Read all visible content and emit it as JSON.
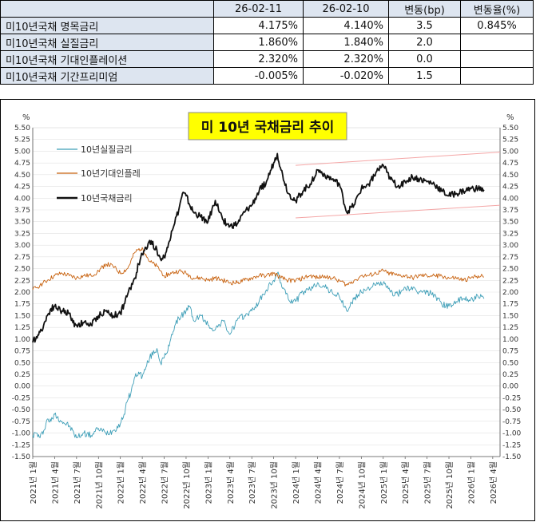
{
  "table": {
    "headers": [
      "",
      "26-02-11",
      "26-02-10",
      "변동(bp)",
      "변동율(%)"
    ],
    "rows": [
      {
        "label": "미10년국채 명목금리",
        "v1": "4.175%",
        "v2": "4.140%",
        "bp": "3.5",
        "pct": "0.845%"
      },
      {
        "label": "미10년국채 실질금리",
        "v1": "1.860%",
        "v2": "1.840%",
        "bp": "2.0",
        "pct": ""
      },
      {
        "label": "미10년국채 기대인플레이션",
        "v1": "2.320%",
        "v2": "2.320%",
        "bp": "0.0",
        "pct": ""
      },
      {
        "label": "미10년국채 기간프리미엄",
        "v1": "-0.005%",
        "v2": "-0.020%",
        "bp": "1.5",
        "pct": ""
      }
    ]
  },
  "colors": {
    "nominal": "#111111",
    "real": "#3f9fb8",
    "inflation": "#c8620f",
    "title_bg": "#ffff00",
    "channel": "#f4a6a6",
    "axis_text": "#333333"
  },
  "chart_data": {
    "type": "line",
    "title": "미 10년 국채금리 추이",
    "ylabel_left": "%",
    "ylabel_right": "%",
    "ylim": [
      -1.5,
      5.5
    ],
    "ytick_step": 0.25,
    "yticks": [
      "5.50",
      "5.25",
      "5.00",
      "4.75",
      "4.50",
      "4.25",
      "4.00",
      "3.75",
      "3.50",
      "3.25",
      "3.00",
      "2.75",
      "2.50",
      "2.25",
      "2.00",
      "1.75",
      "1.50",
      "1.25",
      "1.00",
      "0.75",
      "0.50",
      "0.25",
      "0.00",
      "-0.25",
      "-0.50",
      "-0.75",
      "-1.00",
      "-1.25",
      "-1.50"
    ],
    "x_unit": "months since 2021-01",
    "xlim": [
      0,
      64
    ],
    "xtick_labels": [
      "2021년 1월",
      "2021년 4월",
      "2021년 7월",
      "2021년 10월",
      "2022년 1월",
      "2022년 4월",
      "2022년 7월",
      "2022년 10월",
      "2023년 1월",
      "2023년 4월",
      "2023년 7월",
      "2023년 10월",
      "2024년 1월",
      "2024년 4월",
      "2024년 7월",
      "2024년 10월",
      "2025년 1월",
      "2025년 4월",
      "2025년 7월",
      "2025년 10월",
      "2026년 1월",
      "2026년 4월"
    ],
    "x_months": [
      0,
      3,
      6,
      9,
      12,
      15,
      18,
      21,
      24,
      27,
      30,
      33,
      36,
      39,
      42,
      45,
      48,
      51,
      54,
      57,
      60,
      63
    ],
    "series": [
      {
        "name": "10년실질금리",
        "key": "real",
        "points": [
          [
            0,
            -1.05
          ],
          [
            0.5,
            -1.0
          ],
          [
            1,
            -1.1
          ],
          [
            1.5,
            -0.95
          ],
          [
            2,
            -0.7
          ],
          [
            2.5,
            -0.75
          ],
          [
            3,
            -0.6
          ],
          [
            4,
            -0.75
          ],
          [
            5,
            -0.85
          ],
          [
            6,
            -1.1
          ],
          [
            7,
            -1.0
          ],
          [
            8,
            -1.05
          ],
          [
            9,
            -0.9
          ],
          [
            10,
            -1.0
          ],
          [
            11,
            -0.95
          ],
          [
            12,
            -0.8
          ],
          [
            12.5,
            -0.6
          ],
          [
            13,
            -0.3
          ],
          [
            13.5,
            -0.1
          ],
          [
            14,
            0.2
          ],
          [
            14.5,
            0.3
          ],
          [
            15,
            0.2
          ],
          [
            15.5,
            0.4
          ],
          [
            16,
            0.6
          ],
          [
            17,
            0.8
          ],
          [
            17.5,
            0.5
          ],
          [
            18,
            0.6
          ],
          [
            18.5,
            0.75
          ],
          [
            19,
            1.1
          ],
          [
            20,
            1.45
          ],
          [
            21,
            1.6
          ],
          [
            21.5,
            1.7
          ],
          [
            22,
            1.4
          ],
          [
            23,
            1.5
          ],
          [
            24,
            1.3
          ],
          [
            25,
            1.2
          ],
          [
            26,
            1.4
          ],
          [
            27,
            1.1
          ],
          [
            28,
            1.4
          ],
          [
            29,
            1.5
          ],
          [
            30,
            1.6
          ],
          [
            31,
            1.8
          ],
          [
            32,
            2.05
          ],
          [
            33,
            2.25
          ],
          [
            33.5,
            2.4
          ],
          [
            34,
            2.2
          ],
          [
            35,
            1.85
          ],
          [
            36,
            1.8
          ],
          [
            37,
            2.0
          ],
          [
            38,
            2.05
          ],
          [
            39,
            2.2
          ],
          [
            40,
            2.1
          ],
          [
            41,
            2.0
          ],
          [
            42,
            1.9
          ],
          [
            43,
            1.6
          ],
          [
            44,
            1.85
          ],
          [
            45,
            2.0
          ],
          [
            46,
            2.1
          ],
          [
            47,
            2.15
          ],
          [
            48,
            2.2
          ],
          [
            48.5,
            2.1
          ],
          [
            49,
            2.0
          ],
          [
            50,
            1.95
          ],
          [
            51,
            2.1
          ],
          [
            52,
            2.05
          ],
          [
            53,
            2.0
          ],
          [
            54,
            2.0
          ],
          [
            55,
            1.95
          ],
          [
            56,
            1.75
          ],
          [
            57,
            1.7
          ],
          [
            58,
            1.8
          ],
          [
            59,
            1.85
          ],
          [
            60,
            1.85
          ],
          [
            61,
            1.9
          ],
          [
            61.8,
            1.86
          ]
        ]
      },
      {
        "name": "10년기대인플레",
        "key": "inflation",
        "points": [
          [
            0,
            2.05
          ],
          [
            1,
            2.15
          ],
          [
            2,
            2.25
          ],
          [
            3,
            2.35
          ],
          [
            4,
            2.4
          ],
          [
            5,
            2.35
          ],
          [
            6,
            2.3
          ],
          [
            7,
            2.35
          ],
          [
            8,
            2.35
          ],
          [
            9,
            2.45
          ],
          [
            10,
            2.6
          ],
          [
            11,
            2.55
          ],
          [
            12,
            2.4
          ],
          [
            13,
            2.5
          ],
          [
            14,
            2.85
          ],
          [
            15,
            2.95
          ],
          [
            15.5,
            2.8
          ],
          [
            16,
            2.65
          ],
          [
            17,
            2.55
          ],
          [
            18,
            2.35
          ],
          [
            19,
            2.4
          ],
          [
            20,
            2.45
          ],
          [
            21,
            2.4
          ],
          [
            22,
            2.3
          ],
          [
            23,
            2.3
          ],
          [
            24,
            2.25
          ],
          [
            25,
            2.3
          ],
          [
            26,
            2.25
          ],
          [
            27,
            2.2
          ],
          [
            28,
            2.2
          ],
          [
            29,
            2.25
          ],
          [
            30,
            2.3
          ],
          [
            31,
            2.35
          ],
          [
            32,
            2.35
          ],
          [
            33,
            2.4
          ],
          [
            34,
            2.3
          ],
          [
            35,
            2.25
          ],
          [
            36,
            2.25
          ],
          [
            37,
            2.3
          ],
          [
            38,
            2.35
          ],
          [
            39,
            2.3
          ],
          [
            40,
            2.35
          ],
          [
            41,
            2.3
          ],
          [
            42,
            2.25
          ],
          [
            43,
            2.15
          ],
          [
            44,
            2.25
          ],
          [
            45,
            2.35
          ],
          [
            46,
            2.35
          ],
          [
            47,
            2.4
          ],
          [
            48,
            2.45
          ],
          [
            49,
            2.4
          ],
          [
            50,
            2.35
          ],
          [
            51,
            2.35
          ],
          [
            52,
            2.3
          ],
          [
            53,
            2.35
          ],
          [
            54,
            2.35
          ],
          [
            55,
            2.35
          ],
          [
            56,
            2.35
          ],
          [
            57,
            2.3
          ],
          [
            58,
            2.3
          ],
          [
            59,
            2.25
          ],
          [
            60,
            2.3
          ],
          [
            61,
            2.35
          ],
          [
            61.8,
            2.32
          ]
        ]
      },
      {
        "name": "10년국채금리",
        "key": "nominal",
        "points": [
          [
            0,
            0.93
          ],
          [
            0.5,
            1.05
          ],
          [
            1,
            1.15
          ],
          [
            1.5,
            1.3
          ],
          [
            2,
            1.5
          ],
          [
            2.5,
            1.65
          ],
          [
            3,
            1.7
          ],
          [
            4,
            1.6
          ],
          [
            5,
            1.55
          ],
          [
            5.5,
            1.35
          ],
          [
            6,
            1.3
          ],
          [
            7,
            1.35
          ],
          [
            8,
            1.3
          ],
          [
            9,
            1.5
          ],
          [
            10,
            1.6
          ],
          [
            11,
            1.5
          ],
          [
            12,
            1.55
          ],
          [
            12.5,
            1.75
          ],
          [
            13,
            1.95
          ],
          [
            14,
            2.3
          ],
          [
            14.5,
            2.6
          ],
          [
            15,
            2.8
          ],
          [
            15.5,
            2.95
          ],
          [
            16,
            3.1
          ],
          [
            17,
            2.9
          ],
          [
            17.5,
            2.7
          ],
          [
            18,
            2.75
          ],
          [
            18.5,
            2.95
          ],
          [
            19,
            3.3
          ],
          [
            20,
            3.75
          ],
          [
            20.5,
            4.1
          ],
          [
            21,
            4.05
          ],
          [
            21.5,
            3.85
          ],
          [
            22,
            3.7
          ],
          [
            23,
            3.6
          ],
          [
            24,
            3.5
          ],
          [
            25,
            3.95
          ],
          [
            26,
            3.55
          ],
          [
            27,
            3.4
          ],
          [
            28,
            3.45
          ],
          [
            29,
            3.7
          ],
          [
            30,
            3.85
          ],
          [
            31,
            4.15
          ],
          [
            32,
            4.35
          ],
          [
            33,
            4.75
          ],
          [
            33.5,
            4.95
          ],
          [
            34,
            4.6
          ],
          [
            35,
            4.1
          ],
          [
            36,
            3.95
          ],
          [
            37,
            4.15
          ],
          [
            38,
            4.3
          ],
          [
            39,
            4.6
          ],
          [
            40,
            4.5
          ],
          [
            41,
            4.4
          ],
          [
            42,
            4.3
          ],
          [
            42.5,
            4.0
          ],
          [
            43,
            3.7
          ],
          [
            44,
            3.85
          ],
          [
            45,
            4.2
          ],
          [
            46,
            4.3
          ],
          [
            47,
            4.55
          ],
          [
            48,
            4.7
          ],
          [
            48.5,
            4.55
          ],
          [
            49,
            4.4
          ],
          [
            50,
            4.25
          ],
          [
            51,
            4.35
          ],
          [
            52,
            4.45
          ],
          [
            53,
            4.4
          ],
          [
            54,
            4.35
          ],
          [
            55,
            4.3
          ],
          [
            56,
            4.15
          ],
          [
            57,
            4.05
          ],
          [
            58,
            4.1
          ],
          [
            59,
            4.15
          ],
          [
            60,
            4.2
          ],
          [
            61,
            4.2
          ],
          [
            61.8,
            4.18
          ]
        ]
      }
    ],
    "trend_channel": [
      {
        "x0": 36,
        "y0": 4.7,
        "x1": 64,
        "y1": 4.98
      },
      {
        "x0": 36,
        "y0": 3.58,
        "x1": 64,
        "y1": 3.85
      }
    ]
  }
}
